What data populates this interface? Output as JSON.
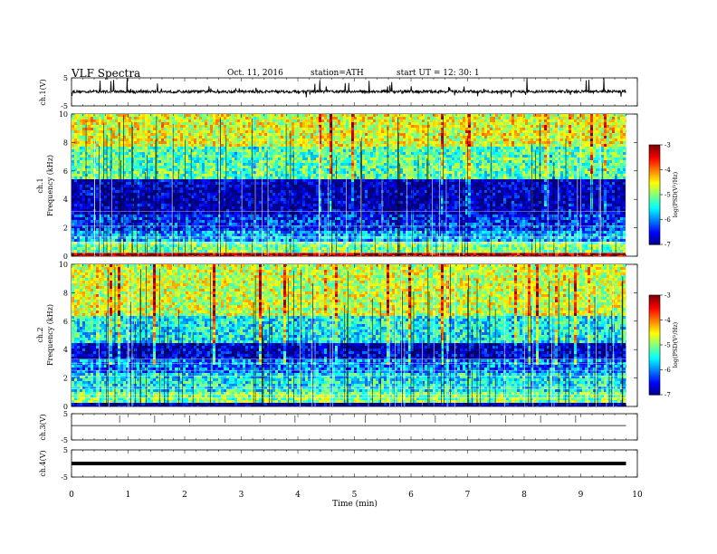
{
  "header": {
    "title": "VLF  Spectra",
    "date": "Oct. 11, 2016",
    "station": "station=ATH",
    "start": "start  UT  =    12: 30: 1"
  },
  "chart_data": [
    {
      "type": "line",
      "panel": "ch1-waveform",
      "ylabel": "ch.1(V)",
      "yticks": [
        "5",
        "-5"
      ],
      "ylim": [
        -5,
        5
      ],
      "baseline": 0.1,
      "noise": "spiky broadband signal around baseline"
    },
    {
      "type": "heatmap",
      "panel": "ch1-spectrogram",
      "ylabel": "Frequency  (kHz)",
      "channel_label": "ch.1",
      "yticks": [
        "0",
        "2",
        "4",
        "6",
        "8",
        "10"
      ],
      "ylim": [
        0,
        10
      ],
      "colorbar": {
        "label": "log(PSD(V²/Hz)",
        "ticks": [
          "-3",
          "-4",
          "-5",
          "-6",
          "-7"
        ],
        "range": [
          -7,
          -3
        ]
      },
      "bands": [
        {
          "from": 0.0,
          "to": 0.3,
          "level": -3.2
        },
        {
          "from": 0.3,
          "to": 1.2,
          "level": -5.0
        },
        {
          "from": 1.2,
          "to": 1.8,
          "level": -5.8
        },
        {
          "from": 1.8,
          "to": 3.1,
          "level": -6.3
        },
        {
          "from": 3.1,
          "to": 5.6,
          "level": -6.8
        },
        {
          "from": 5.6,
          "to": 7.8,
          "level": -5.2
        },
        {
          "from": 7.8,
          "to": 10.0,
          "level": -4.6
        }
      ]
    },
    {
      "type": "heatmap",
      "panel": "ch2-spectrogram",
      "ylabel": "Frequency  (kHz)",
      "channel_label": "ch.2",
      "yticks": [
        "0",
        "2",
        "4",
        "6",
        "8",
        "10"
      ],
      "ylim": [
        0,
        10
      ],
      "colorbar": {
        "label": "log(PSD(V²/Hz)",
        "ticks": [
          "-3",
          "-4",
          "-5",
          "-6",
          "-7"
        ],
        "range": [
          -7,
          -3
        ]
      },
      "bands": [
        {
          "from": 0.0,
          "to": 0.4,
          "level": -6.9
        },
        {
          "from": 0.4,
          "to": 1.2,
          "level": -5.0
        },
        {
          "from": 1.2,
          "to": 2.4,
          "level": -5.5
        },
        {
          "from": 2.4,
          "to": 3.4,
          "level": -6.0
        },
        {
          "from": 3.4,
          "to": 4.6,
          "level": -6.7
        },
        {
          "from": 4.6,
          "to": 6.5,
          "level": -5.5
        },
        {
          "from": 6.5,
          "to": 10.0,
          "level": -4.7
        }
      ]
    },
    {
      "type": "line",
      "panel": "ch3-waveform",
      "ylabel": "ch.3(V)",
      "yticks": [
        "5",
        "-5"
      ],
      "ylim": [
        -5,
        5
      ],
      "baseline": 0.5
    },
    {
      "type": "line",
      "panel": "ch4-waveform",
      "ylabel": "ch.4(V)",
      "yticks": [
        "5",
        "-5"
      ],
      "ylim": [
        -5,
        5
      ],
      "baseline": 0.0
    }
  ],
  "xaxis": {
    "label": "Time  (min)",
    "ticks": [
      "0",
      "1",
      "2",
      "3",
      "4",
      "5",
      "6",
      "7",
      "8",
      "9",
      "10"
    ],
    "xlim": [
      0,
      10
    ],
    "data_end": 9.8
  }
}
